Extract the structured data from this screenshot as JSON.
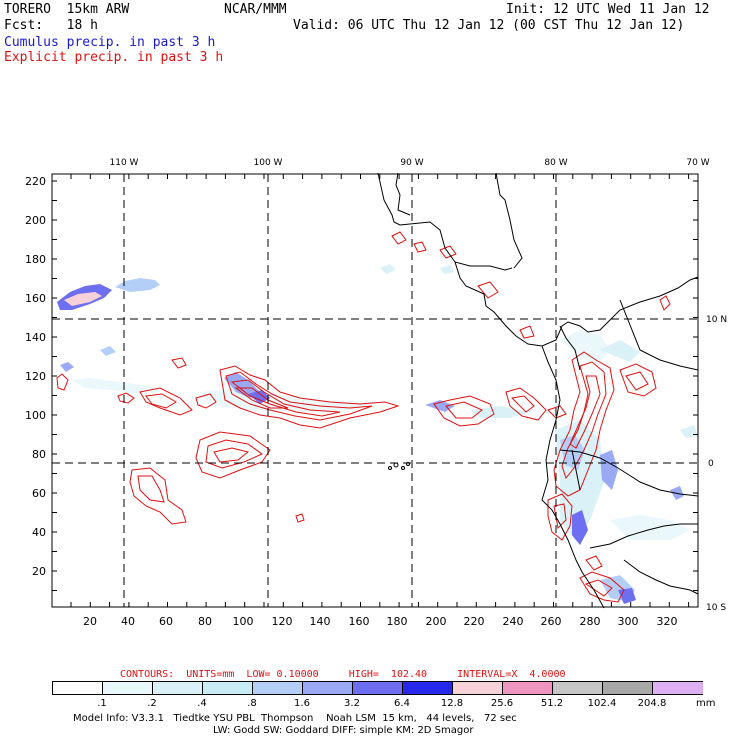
{
  "header": {
    "model": "TORERO  15km ARW",
    "org": "NCAR/MMM",
    "init": "Init: 12 UTC Wed 11 Jan 12",
    "fcst": "Fcst:   18 h",
    "valid": "Valid: 06 UTC Thu 12 Jan 12 (00 CST Thu 12 Jan 12)",
    "legend_cumulus": "Cumulus precip. in past 3 h",
    "legend_explicit": "Explicit precip. in past 3 h"
  },
  "map": {
    "lon_labels": [
      "110 W",
      "100 W",
      "90 W",
      "80 W",
      "70 W"
    ],
    "lat_labels": [
      "10 N",
      "0",
      "10 S"
    ],
    "y_ticks": [
      "220",
      "200",
      "180",
      "160",
      "140",
      "120",
      "100",
      "80",
      "60",
      "40",
      "20"
    ],
    "x_ticks": [
      "20",
      "40",
      "60",
      "80",
      "100",
      "120",
      "140",
      "160",
      "180",
      "200",
      "220",
      "240",
      "260",
      "280",
      "300",
      "320"
    ]
  },
  "contours": {
    "label": "CONTOURS:  UNITS=mm  LOW= 0.10000     HIGH=  102.40     INTERVAL=X  4.0000"
  },
  "colorbar": {
    "colors": [
      "#ffffff",
      "#eaf7fb",
      "#d9f1f7",
      "#c8ecf3",
      "#b4cff7",
      "#9aa9f4",
      "#6e6ef0",
      "#2828ea",
      "#f6d2d8",
      "#ee96c0",
      "#c6c6c6",
      "#a8a8a8",
      "#dfaff3"
    ],
    "labels": [
      ".1",
      ".2",
      ".4",
      ".8",
      "1.6",
      "3.2",
      "6.4",
      "12.8",
      "25.6",
      "51.2",
      "102.4",
      "204.8"
    ],
    "unit": "mm"
  },
  "footer": {
    "line1": "Model Info: V3.3.1   Tiedtke YSU PBL  Thompson    Noah LSM  15 km,   44 levels,   72 sec",
    "line2": "LW: Godd SW: Goddard DIFF: simple KM: 2D Smagor"
  }
}
